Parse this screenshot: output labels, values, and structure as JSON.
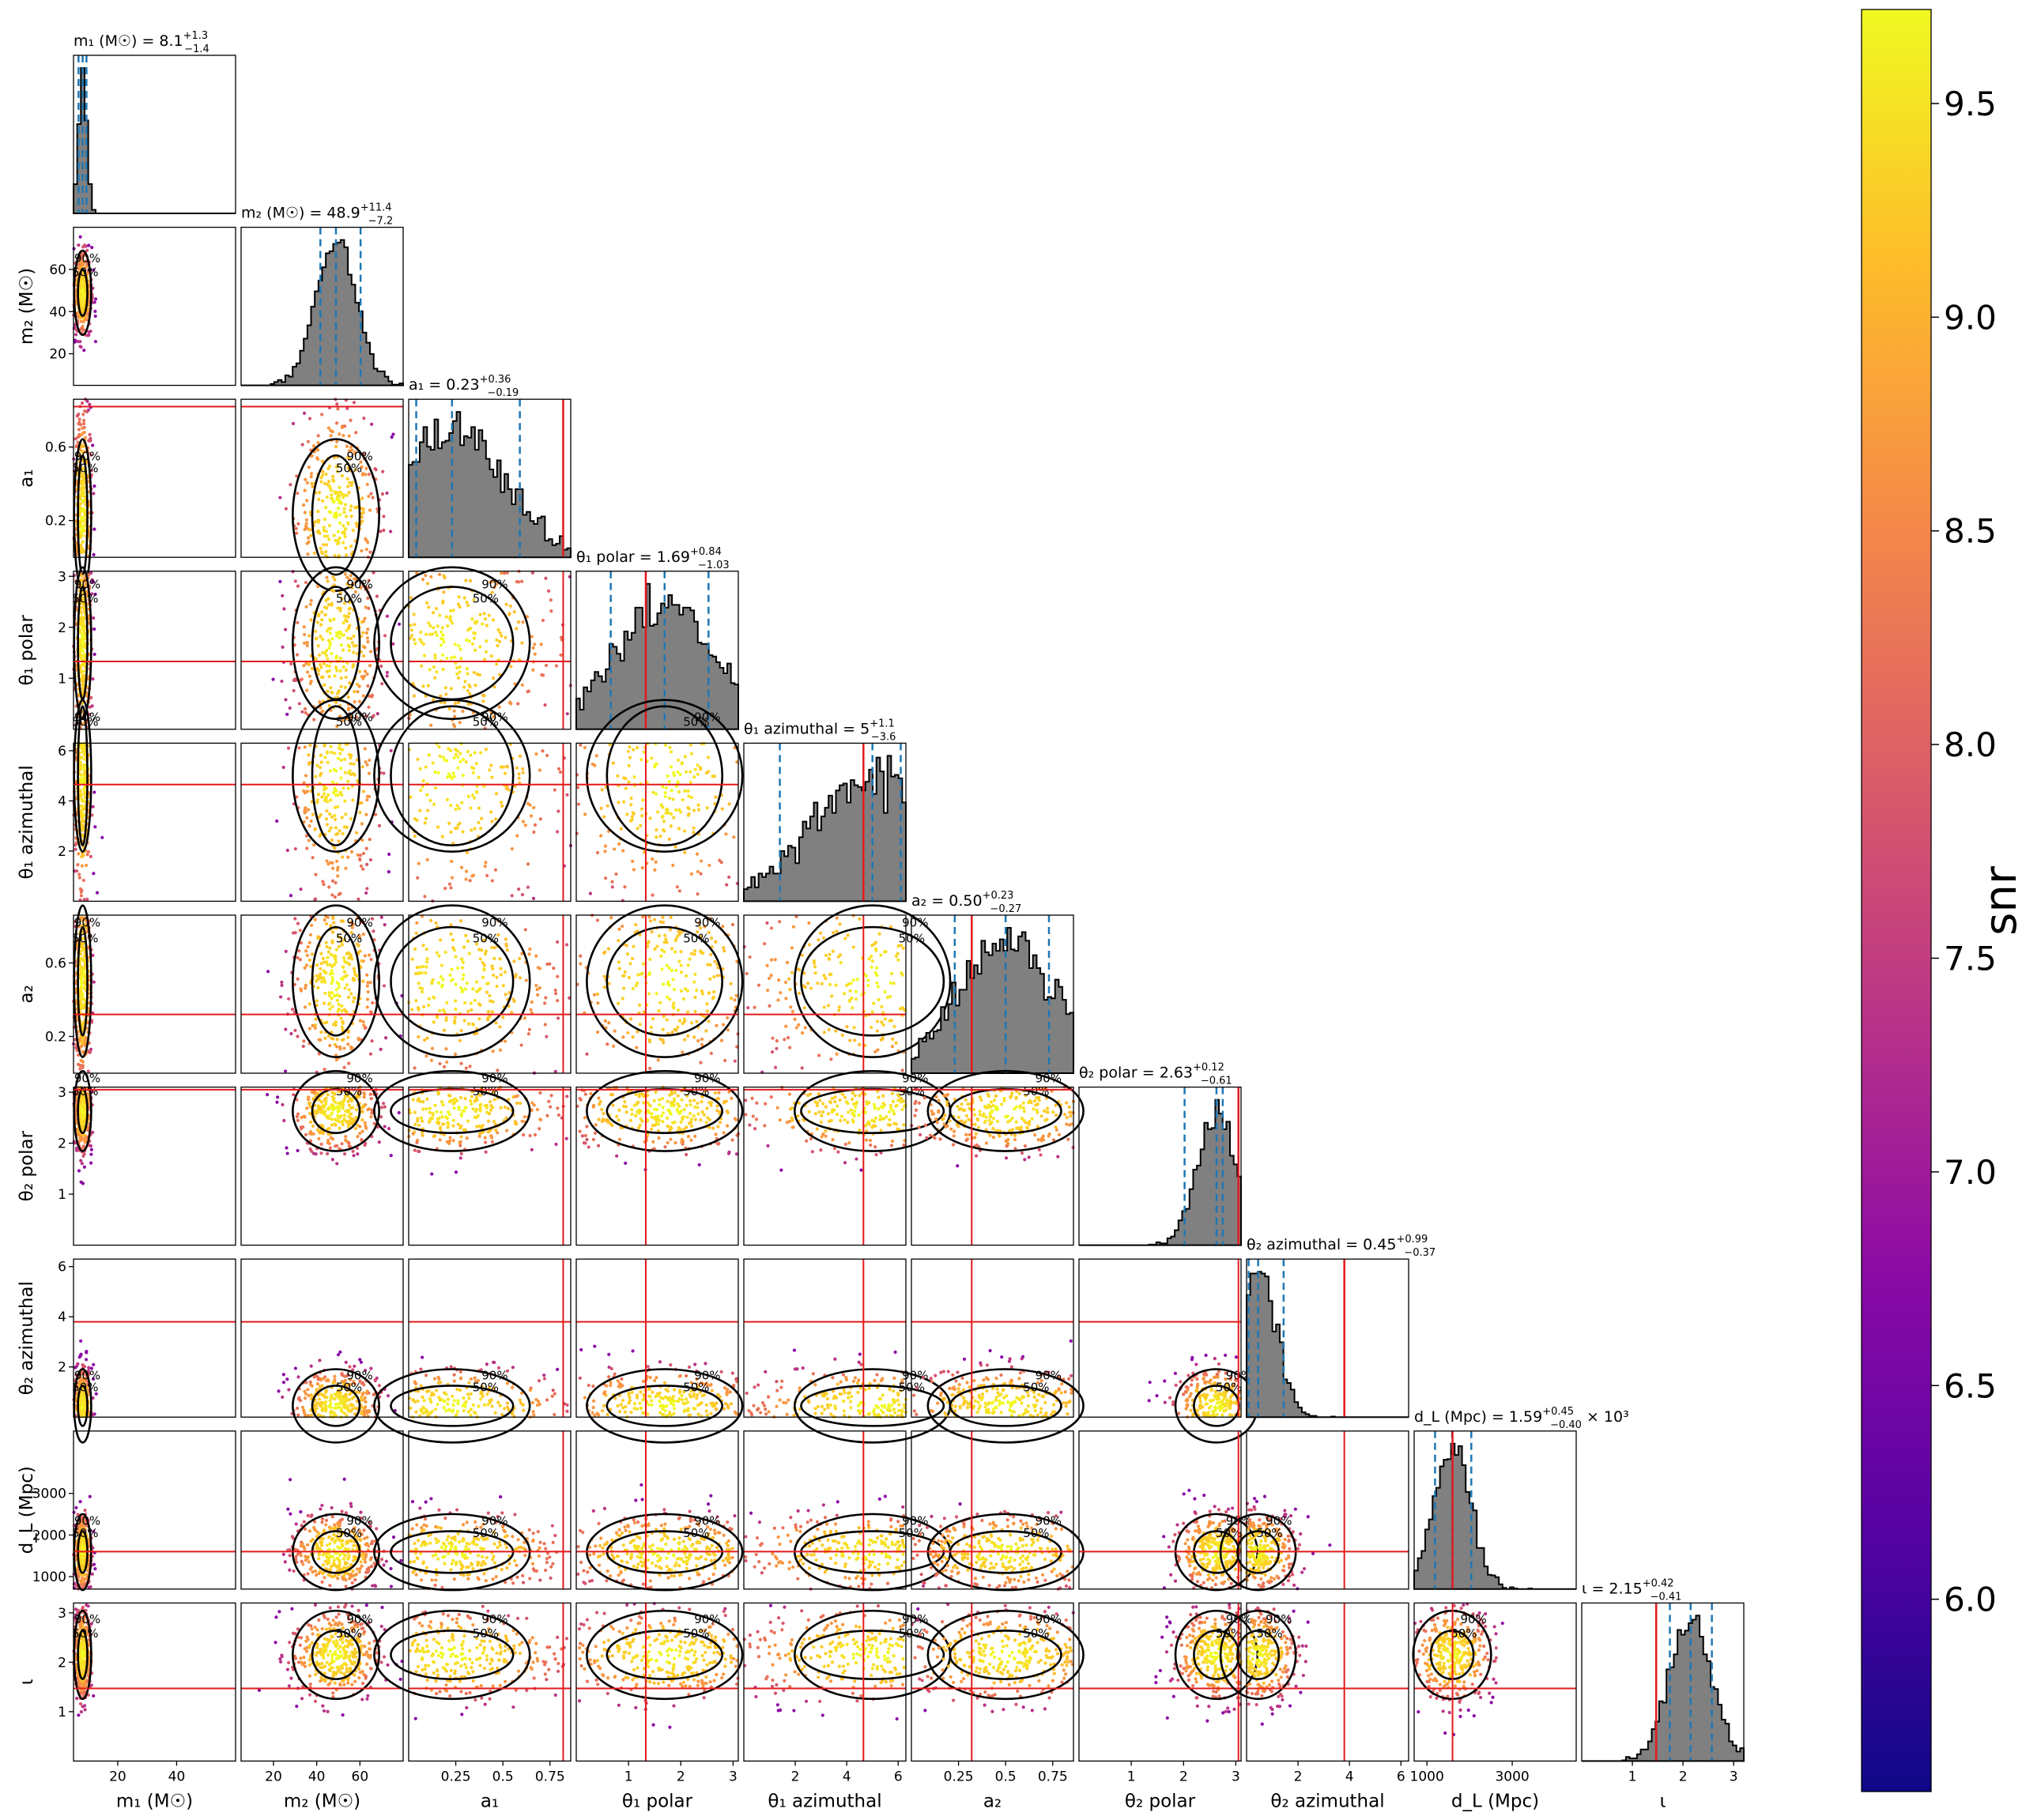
{
  "chart_data": {
    "type": "scatter",
    "kind": "corner-plot",
    "parameters": [
      {
        "key": "m1",
        "label": "m₁ (M☉)",
        "title": "m₁ (M☉) = 8.1",
        "median": 8.1,
        "plus": "+1.3",
        "minus": "−1.4",
        "range": [
          5,
          60
        ],
        "ticks": [
          20,
          40
        ],
        "injected": null
      },
      {
        "key": "m2",
        "label": "m₂ (M☉)",
        "title": "m₂ (M☉) = 48.9",
        "median": 48.9,
        "plus": "+11.4",
        "minus": "−7.2",
        "range": [
          5,
          80
        ],
        "ticks": [
          20,
          40,
          60
        ],
        "injected": null
      },
      {
        "key": "a1",
        "label": "a₁",
        "title": "a₁ = 0.23",
        "median": 0.23,
        "plus": "+0.36",
        "minus": "−0.19",
        "range": [
          0,
          0.86
        ],
        "ticks": [
          0.25,
          0.5,
          0.75
        ],
        "yticks": [
          0.2,
          0.6
        ],
        "injected": 0.82
      },
      {
        "key": "theta1_polar",
        "label": "θ₁ polar",
        "title": "θ₁ polar = 1.69",
        "median": 1.69,
        "plus": "+0.84",
        "minus": "−1.03",
        "range": [
          0,
          3.1
        ],
        "ticks": [
          1,
          2,
          3
        ],
        "injected": 1.33
      },
      {
        "key": "theta1_azimuthal",
        "label": "θ₁ azimuthal",
        "title": "θ₁ azimuthal = 5",
        "median": 5,
        "plus": "+1.1",
        "minus": "−3.6",
        "range": [
          0,
          6.3
        ],
        "ticks": [
          2,
          4,
          6
        ],
        "injected": 4.65
      },
      {
        "key": "a2",
        "label": "a₂",
        "title": "a₂ = 0.50",
        "median": 0.5,
        "plus": "+0.23",
        "minus": "−0.27",
        "range": [
          0,
          0.86
        ],
        "ticks": [
          0.25,
          0.5,
          0.75
        ],
        "yticks": [
          0.2,
          0.6
        ],
        "injected": 0.32
      },
      {
        "key": "theta2_polar",
        "label": "θ₂ polar",
        "title": "θ₂ polar = 2.63",
        "median": 2.63,
        "plus": "+0.12",
        "minus": "−0.61",
        "range": [
          0,
          3.1
        ],
        "ticks": [
          1,
          2,
          3
        ],
        "injected": 3.05
      },
      {
        "key": "theta2_azimuthal",
        "label": "θ₂ azimuthal",
        "title": "θ₂ azimuthal = 0.45",
        "median": 0.45,
        "plus": "+0.99",
        "minus": "−0.37",
        "range": [
          0,
          6.3
        ],
        "ticks": [
          2,
          4,
          6
        ],
        "injected": 3.8
      },
      {
        "key": "dL",
        "label": "d_L (Mpc)",
        "title": "d_L (Mpc) = 1.59",
        "median": 1590,
        "plus": "+0.45",
        "minus": "−0.40",
        "suffix": " × 10³",
        "range": [
          700,
          4500
        ],
        "ticks": [
          1000,
          3000
        ],
        "yticks": [
          1000,
          2000,
          3000
        ],
        "injected": 1600
      },
      {
        "key": "iota",
        "label": "ι",
        "title": "ι = 2.15",
        "median": 2.15,
        "plus": "+0.42",
        "minus": "−0.41",
        "range": [
          0,
          3.2
        ],
        "ticks": [
          1,
          2,
          3
        ],
        "injected": 1.47
      }
    ],
    "contour_labels": [
      "50%",
      "90%"
    ],
    "colorbar": {
      "label": "snr",
      "range": [
        5.55,
        9.72
      ],
      "ticks": [
        "6.0",
        "6.5",
        "7.0",
        "7.5",
        "8.0",
        "8.5",
        "9.0",
        "9.5"
      ],
      "colormap": "plasma"
    },
    "colors": {
      "histogram_fill": "#808080",
      "quantile_line": "#1f77b4",
      "injection_line": "#e31a1c",
      "contour": "#000000"
    }
  }
}
